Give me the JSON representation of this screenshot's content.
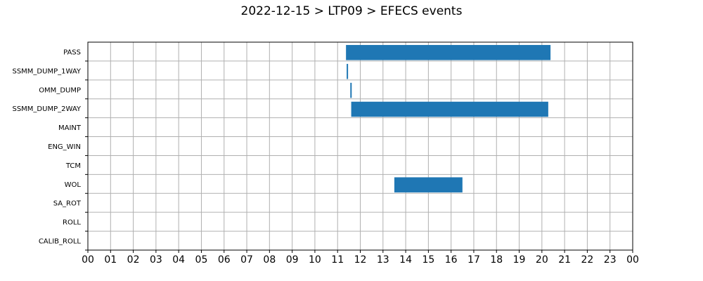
{
  "chart_data": {
    "type": "gantt",
    "title": "2022-12-15 > LTP09 > EFECS events",
    "xlabel": "",
    "ylabel": "",
    "x_ticks": [
      "00",
      "01",
      "02",
      "03",
      "04",
      "05",
      "06",
      "07",
      "08",
      "09",
      "10",
      "11",
      "12",
      "13",
      "14",
      "15",
      "16",
      "17",
      "18",
      "19",
      "20",
      "21",
      "22",
      "23",
      "00"
    ],
    "xlim": [
      0,
      24
    ],
    "categories": [
      "PASS",
      "SSMM_DUMP_1WAY",
      "OMM_DUMP",
      "SSMM_DUMP_2WAY",
      "MAINT",
      "ENG_WIN",
      "TCM",
      "WOL",
      "SA_ROT",
      "ROLL",
      "CALIB_ROLL"
    ],
    "events": [
      {
        "category": "PASS",
        "start": 11.37,
        "end": 20.38
      },
      {
        "category": "SSMM_DUMP_1WAY",
        "start": 11.4,
        "end": 11.45
      },
      {
        "category": "OMM_DUMP",
        "start": 11.56,
        "end": 11.6
      },
      {
        "category": "SSMM_DUMP_2WAY",
        "start": 11.6,
        "end": 20.28
      },
      {
        "category": "WOL",
        "start": 13.5,
        "end": 16.5
      }
    ],
    "grid": true,
    "bar_color": "#1f77b4"
  }
}
